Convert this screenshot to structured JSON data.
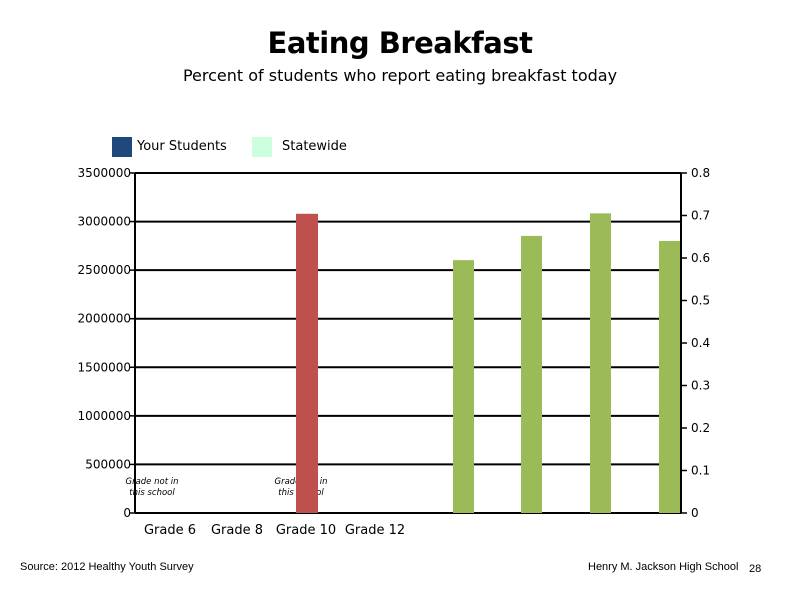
{
  "header": {
    "title": "Eating Breakfast",
    "subtitle": "Percent of students who report eating breakfast today"
  },
  "legend": {
    "items": [
      {
        "label": "Your Students",
        "color": "#1f497d"
      },
      {
        "label": "Statewide",
        "color": "#ccffdd"
      }
    ]
  },
  "footer": {
    "source": "Source: 2012 Healthy Youth Survey",
    "school": "Henry M. Jackson High School",
    "page_number": "28"
  },
  "chart_data": {
    "type": "bar",
    "title": "Eating Breakfast",
    "subtitle": "Percent of students who report eating breakfast today",
    "categories": [
      "Grade 6",
      "Grade 8",
      "Grade 10",
      "Grade 12"
    ],
    "y_left": {
      "ylim": [
        0,
        3500000
      ],
      "ticks": [
        "0",
        "500000",
        "1000000",
        "1500000",
        "2000000",
        "2500000",
        "3000000",
        "3500000"
      ]
    },
    "y_right": {
      "ylim": [
        0,
        0.8
      ],
      "ticks": [
        "0",
        "0.1",
        "0.2",
        "0.3",
        "0.4",
        "0.5",
        "0.6",
        "0.7",
        "0.8"
      ]
    },
    "grid": true,
    "legend_position": "top-left",
    "annotations": [
      {
        "category": "Grade 6",
        "text": [
          "Grade not in",
          "this school"
        ]
      },
      {
        "category": "Grade 10",
        "text": [
          "Grade not in",
          "this school"
        ]
      }
    ],
    "series": [
      {
        "name": "",
        "color": "#c0504d",
        "axis": "left",
        "values": [
          {
            "category": "Grade 10",
            "value": 3080000
          }
        ]
      },
      {
        "name": "",
        "color": "#9bbb59",
        "axis": "right",
        "values": [
          0.595,
          0.652,
          0.705,
          0.64
        ]
      }
    ]
  }
}
